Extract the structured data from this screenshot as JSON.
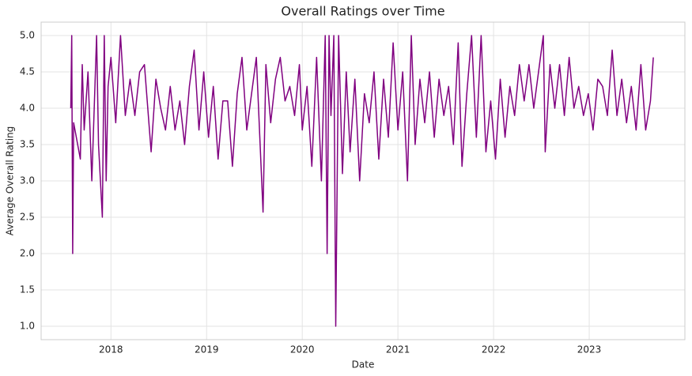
{
  "chart_data": {
    "type": "line",
    "title": "Overall Ratings over Time",
    "x_label": "Date",
    "y_label": "Average Overall Rating",
    "color": "#800080",
    "grid": true,
    "x": [
      2017.58,
      2017.59,
      2017.6,
      2017.61,
      2017.68,
      2017.7,
      2017.72,
      2017.76,
      2017.8,
      2017.83,
      2017.85,
      2017.87,
      2017.91,
      2017.93,
      2017.95,
      2017.97,
      2018.0,
      2018.05,
      2018.1,
      2018.15,
      2018.2,
      2018.25,
      2018.3,
      2018.35,
      2018.42,
      2018.47,
      2018.52,
      2018.57,
      2018.62,
      2018.67,
      2018.72,
      2018.77,
      2018.82,
      2018.87,
      2018.92,
      2018.97,
      2019.02,
      2019.07,
      2019.12,
      2019.17,
      2019.22,
      2019.27,
      2019.32,
      2019.37,
      2019.42,
      2019.47,
      2019.52,
      2019.59,
      2019.62,
      2019.67,
      2019.72,
      2019.77,
      2019.82,
      2019.87,
      2019.92,
      2019.97,
      2020.0,
      2020.05,
      2020.1,
      2020.15,
      2020.2,
      2020.24,
      2020.26,
      2020.28,
      2020.3,
      2020.33,
      2020.35,
      2020.38,
      2020.42,
      2020.46,
      2020.5,
      2020.55,
      2020.6,
      2020.65,
      2020.7,
      2020.75,
      2020.8,
      2020.85,
      2020.9,
      2020.95,
      2021.0,
      2021.05,
      2021.1,
      2021.14,
      2021.18,
      2021.23,
      2021.28,
      2021.33,
      2021.38,
      2021.43,
      2021.48,
      2021.53,
      2021.58,
      2021.63,
      2021.67,
      2021.72,
      2021.77,
      2021.82,
      2021.87,
      2021.92,
      2021.97,
      2022.02,
      2022.07,
      2022.12,
      2022.17,
      2022.22,
      2022.27,
      2022.32,
      2022.37,
      2022.42,
      2022.47,
      2022.52,
      2022.54,
      2022.59,
      2022.64,
      2022.69,
      2022.74,
      2022.79,
      2022.84,
      2022.89,
      2022.94,
      2022.99,
      2023.04,
      2023.09,
      2023.14,
      2023.19,
      2023.24,
      2023.29,
      2023.34,
      2023.39,
      2023.44,
      2023.49,
      2023.54,
      2023.59,
      2023.64,
      2023.67
    ],
    "values": [
      4.0,
      5.0,
      2.0,
      3.8,
      3.3,
      4.6,
      3.7,
      4.5,
      3.0,
      4.2,
      5.0,
      3.5,
      2.5,
      5.0,
      3.0,
      4.3,
      4.7,
      3.8,
      5.0,
      3.9,
      4.4,
      3.9,
      4.5,
      4.6,
      3.4,
      4.4,
      4.0,
      3.7,
      4.3,
      3.7,
      4.1,
      3.5,
      4.3,
      4.8,
      3.7,
      4.5,
      3.6,
      4.3,
      3.3,
      4.1,
      4.1,
      3.2,
      4.2,
      4.7,
      3.7,
      4.2,
      4.7,
      2.57,
      4.6,
      3.8,
      4.4,
      4.7,
      4.1,
      4.3,
      3.9,
      4.6,
      3.7,
      4.3,
      3.2,
      4.7,
      3.0,
      5.0,
      2.0,
      5.0,
      3.9,
      5.0,
      1.0,
      5.0,
      3.1,
      4.5,
      3.4,
      4.4,
      3.0,
      4.2,
      3.8,
      4.5,
      3.3,
      4.4,
      3.6,
      4.9,
      3.7,
      4.5,
      3.0,
      5.0,
      3.5,
      4.4,
      3.8,
      4.5,
      3.6,
      4.4,
      3.9,
      4.3,
      3.5,
      4.9,
      3.2,
      4.2,
      5.0,
      3.6,
      5.0,
      3.4,
      4.1,
      3.3,
      4.4,
      3.6,
      4.3,
      3.9,
      4.6,
      4.1,
      4.6,
      4.0,
      4.5,
      5.0,
      3.4,
      4.6,
      4.0,
      4.6,
      3.9,
      4.7,
      4.0,
      4.3,
      3.9,
      4.2,
      3.7,
      4.4,
      4.3,
      3.9,
      4.8,
      3.9,
      4.4,
      3.8,
      4.3,
      3.7,
      4.6,
      3.7,
      4.1,
      4.7
    ],
    "xlim": [
      2017.27,
      2024.0
    ],
    "xticks": [
      2018,
      2019,
      2020,
      2021,
      2022,
      2023
    ],
    "ylim": [
      0.815,
      5.185
    ],
    "yticks": [
      {
        "value": 1,
        "label": "1.0"
      },
      {
        "value": 1.5,
        "label": "1.5"
      },
      {
        "value": 2,
        "label": "2.0"
      },
      {
        "value": 2.5,
        "label": "2.5"
      },
      {
        "value": 3,
        "label": "3.0"
      },
      {
        "value": 3.5,
        "label": "3.5"
      },
      {
        "value": 4,
        "label": "4.0"
      },
      {
        "value": 4.5,
        "label": "4.5"
      },
      {
        "value": 5,
        "label": "5.0"
      }
    ]
  }
}
